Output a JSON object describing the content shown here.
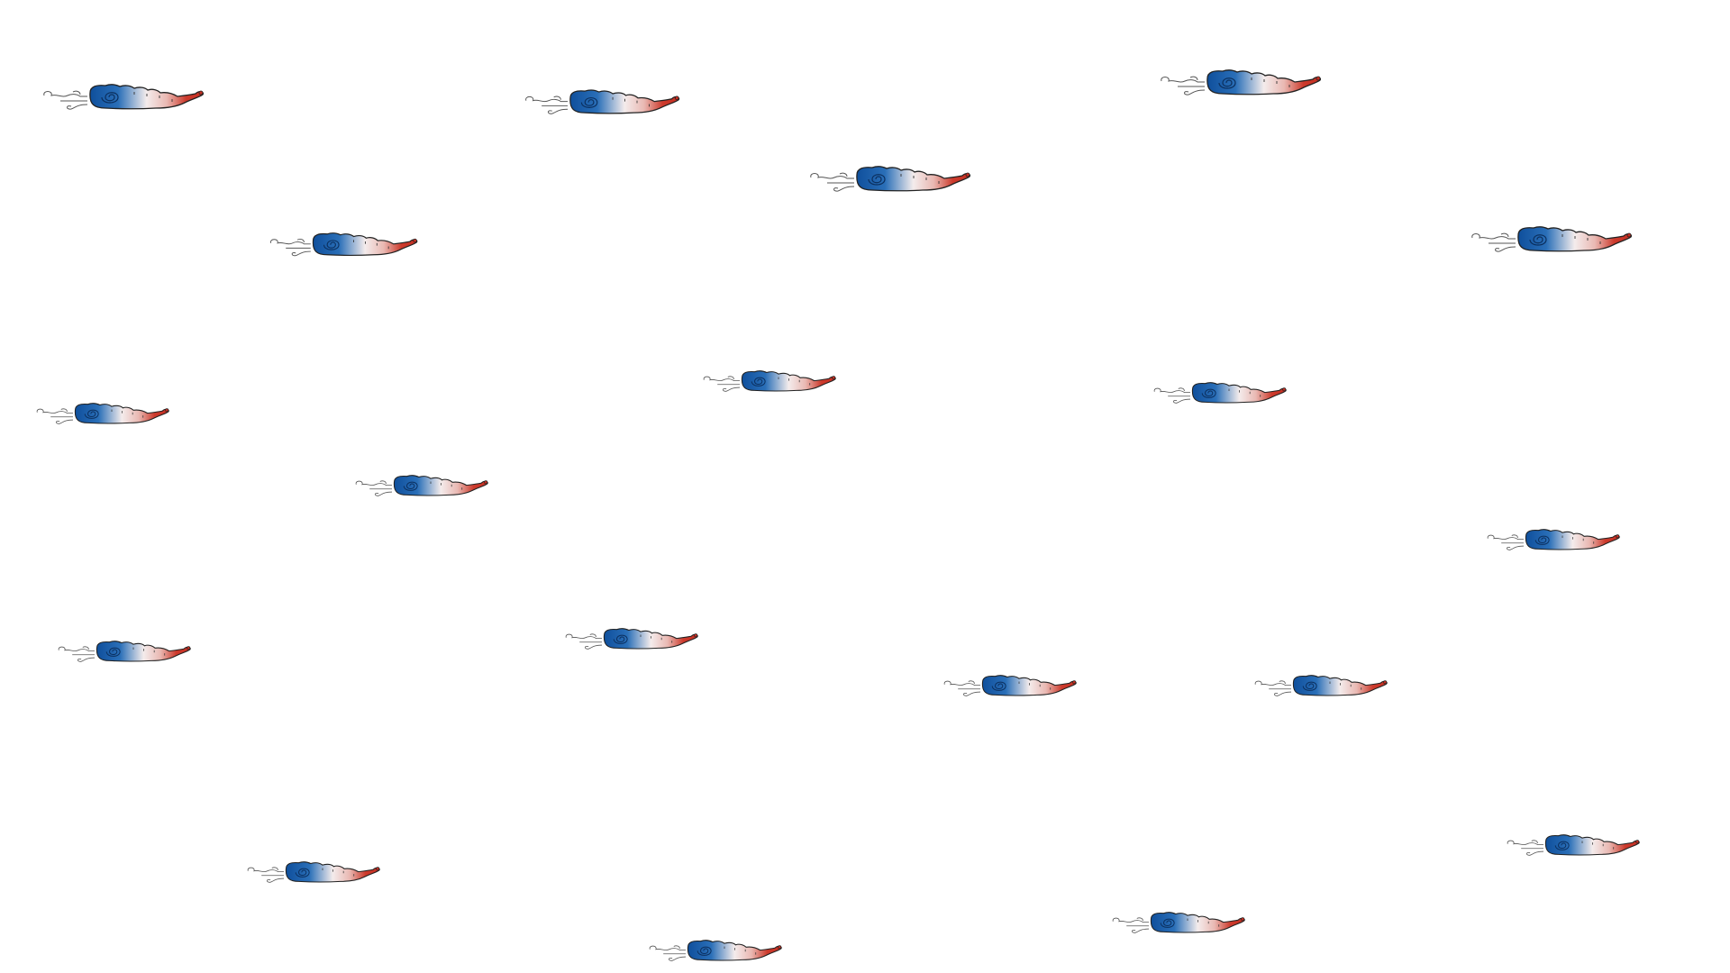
{
  "background_color": "#ffffff",
  "sprite": {
    "icon": "striped-snail-icon",
    "count": 19,
    "colors": {
      "blue": "#1d5fa8",
      "light": "#f4ecec",
      "red": "#cc3a2c",
      "outline": "#222222",
      "trail": "#555555"
    }
  }
}
